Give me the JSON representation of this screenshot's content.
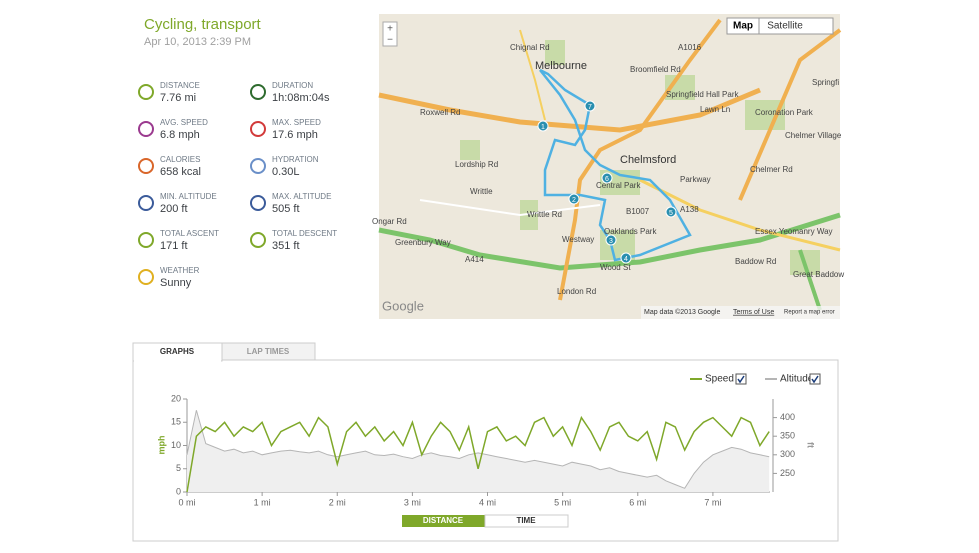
{
  "header": {
    "title": "Cycling, transport",
    "date": "Apr 10, 2013 2:39 PM"
  },
  "stats": [
    {
      "label": "DISTANCE",
      "value": "7.76 mi"
    },
    {
      "label": "DURATION",
      "value": "1h:08m:04s"
    },
    {
      "label": "AVG. SPEED",
      "value": "6.8 mph"
    },
    {
      "label": "MAX. SPEED",
      "value": "17.6 mph"
    },
    {
      "label": "CALORIES",
      "value": "658 kcal"
    },
    {
      "label": "HYDRATION",
      "value": "0.30L"
    },
    {
      "label": "MIN. ALTITUDE",
      "value": "200 ft"
    },
    {
      "label": "MAX. ALTITUDE",
      "value": "505 ft"
    },
    {
      "label": "TOTAL ASCENT",
      "value": "171 ft"
    },
    {
      "label": "TOTAL DESCENT",
      "value": "351 ft"
    },
    {
      "label": "WEATHER",
      "value": "Sunny"
    }
  ],
  "map": {
    "buttons": [
      "Map",
      "Satellite"
    ],
    "zoom": [
      "+",
      "−"
    ],
    "labels": [
      "Melbourne",
      "Chelmsford",
      "Springfield Hall Park",
      "Coronation Park",
      "Chelmer Village",
      "Central Park",
      "Oaklands Park",
      "Writtle",
      "Great Baddow",
      "Roxwell Rd",
      "Greenbury Way",
      "A414",
      "A1016",
      "A138",
      "Essex Yeomanry Way",
      "Springfi",
      "Parkway",
      "Baddow Rd",
      "B1007",
      "Writtle Rd",
      "Westway",
      "London Rd",
      "Wood St",
      "Lordship Rd",
      "Chignal Rd",
      "Broomfield Rd",
      "Ongar Rd",
      "Chelmer Rd",
      "Lawn Ln"
    ],
    "markers": [
      "1",
      "2",
      "3",
      "4",
      "5",
      "6",
      "7"
    ],
    "footer": [
      "Google",
      "Map data ©2013 Google",
      "Terms of Use",
      "Report a map error"
    ]
  },
  "tabs": [
    "GRAPHS",
    "LAP TIMES"
  ],
  "toggles": [
    "DISTANCE",
    "TIME"
  ],
  "chart_data": {
    "type": "line",
    "ylabel": "mph",
    "y2label": "ft",
    "x": [
      0,
      0.125,
      0.25,
      0.375,
      0.5,
      0.625,
      0.75,
      0.875,
      1,
      1.125,
      1.25,
      1.375,
      1.5,
      1.625,
      1.75,
      1.875,
      2,
      2.125,
      2.25,
      2.375,
      2.5,
      2.625,
      2.75,
      2.875,
      3,
      3.125,
      3.25,
      3.375,
      3.5,
      3.625,
      3.75,
      3.875,
      4,
      4.125,
      4.25,
      4.375,
      4.5,
      4.625,
      4.75,
      4.875,
      5,
      5.125,
      5.25,
      5.375,
      5.5,
      5.625,
      5.75,
      5.875,
      6,
      6.125,
      6.25,
      6.375,
      6.5,
      6.625,
      6.75,
      6.875,
      7,
      7.125,
      7.25,
      7.375,
      7.5,
      7.625,
      7.75
    ],
    "xlim": [
      0,
      7.76
    ],
    "xticks": [
      {
        "value": 0,
        "label": "0 mi"
      },
      {
        "value": 1,
        "label": "1 mi"
      },
      {
        "value": 2,
        "label": "2 mi"
      },
      {
        "value": 3,
        "label": "3 mi"
      },
      {
        "value": 4,
        "label": "4 mi"
      },
      {
        "value": 5,
        "label": "5 mi"
      },
      {
        "value": 6,
        "label": "6 mi"
      },
      {
        "value": 7,
        "label": "7 mi"
      }
    ],
    "ylim": [
      0,
      20
    ],
    "yticks": [
      0,
      5,
      10,
      15,
      20
    ],
    "y2lim": [
      200,
      450
    ],
    "y2ticks": [
      250,
      300,
      350,
      400
    ],
    "series": [
      {
        "name": "Speed",
        "color": "#7fa82a",
        "values": [
          0,
          12,
          14,
          13,
          15,
          12,
          14,
          13,
          15,
          10,
          13,
          14,
          15,
          12,
          16,
          14,
          6,
          13,
          15,
          12,
          14,
          11,
          13,
          10,
          15,
          8,
          12,
          15,
          13,
          9,
          14,
          5,
          13,
          14,
          11,
          12,
          10,
          15,
          16,
          12,
          14,
          10,
          16,
          13,
          9,
          14,
          15,
          12,
          11,
          13,
          7,
          15,
          14,
          9,
          13,
          15,
          16,
          14,
          12,
          16,
          15,
          10,
          13
        ]
      },
      {
        "name": "Altitude",
        "color": "#b5b5b5",
        "axis": "y2",
        "values": [
          300,
          420,
          330,
          320,
          310,
          315,
          305,
          310,
          300,
          305,
          310,
          312,
          308,
          305,
          310,
          300,
          295,
          300,
          305,
          310,
          300,
          298,
          302,
          295,
          290,
          300,
          305,
          298,
          295,
          290,
          300,
          305,
          300,
          295,
          290,
          285,
          280,
          285,
          280,
          275,
          270,
          280,
          275,
          270,
          260,
          265,
          255,
          250,
          245,
          240,
          245,
          230,
          220,
          210,
          250,
          280,
          300,
          310,
          320,
          315,
          305,
          300,
          295
        ]
      }
    ]
  }
}
